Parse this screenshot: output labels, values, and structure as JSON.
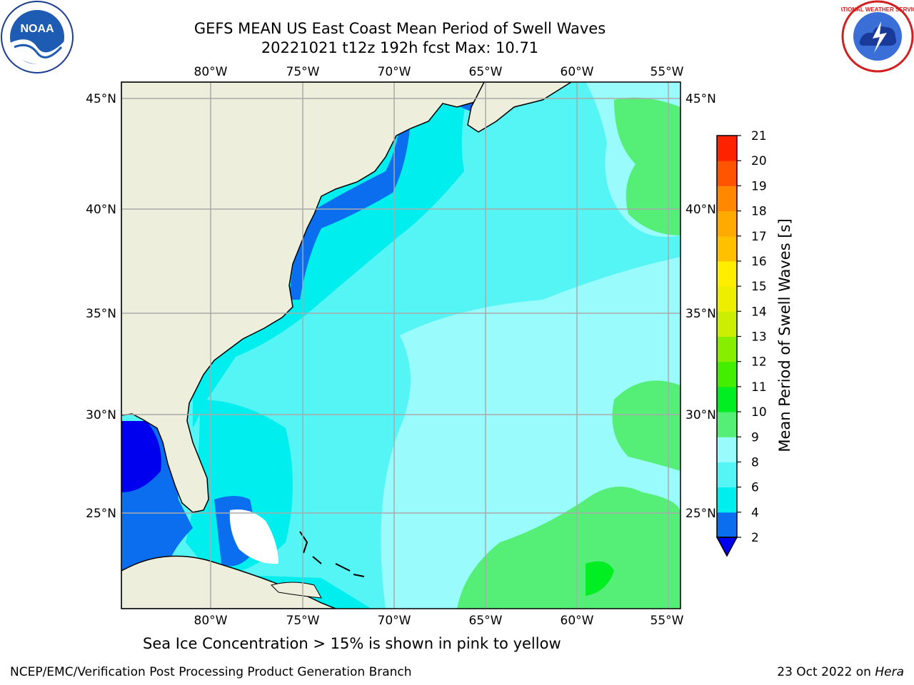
{
  "title": {
    "line1": "GEFS MEAN US East Coast Mean Period of Swell Waves",
    "line2": "20221021 t12z 192h fcst   Max: 10.71"
  },
  "logos": {
    "left": {
      "name": "noaa-logo",
      "text": "NOAA"
    },
    "right": {
      "name": "nws-logo",
      "text": "NATIONAL WEATHER SERVICE"
    }
  },
  "map": {
    "lon_labels": [
      "80°W",
      "75°W",
      "70°W",
      "65°W",
      "60°W",
      "55°W"
    ],
    "lat_labels": [
      "45°N",
      "40°N",
      "35°N",
      "30°N",
      "25°N"
    ],
    "colors": {
      "land": "#eeeedd",
      "grid": "#aaaaaa",
      "ice_white": "#ffffff"
    }
  },
  "colorbar": {
    "label": "Mean Period of Swell Waves [s]",
    "ticks": [
      "2",
      "4",
      "6",
      "8",
      "9",
      "10",
      "11",
      "12",
      "13",
      "14",
      "15",
      "16",
      "17",
      "18",
      "19",
      "20",
      "21"
    ],
    "colors": [
      "#0000ee",
      "#0a6eee",
      "#00eeee",
      "#55f5f5",
      "#99fbfb",
      "#55ee77",
      "#00ee22",
      "#44ee00",
      "#88ee00",
      "#ccee00",
      "#eeee00",
      "#ffee00",
      "#ffc000",
      "#ffaa00",
      "#ff8800",
      "#ff5500",
      "#ff2200",
      "#ff0000"
    ]
  },
  "note": "Sea Ice Concentration > 15% is shown in pink to yellow",
  "footer": {
    "left": "NCEP/EMC/Verification Post Processing Product Generation Branch",
    "right_date": "23 Oct 2022 on ",
    "right_host": "Hera"
  }
}
